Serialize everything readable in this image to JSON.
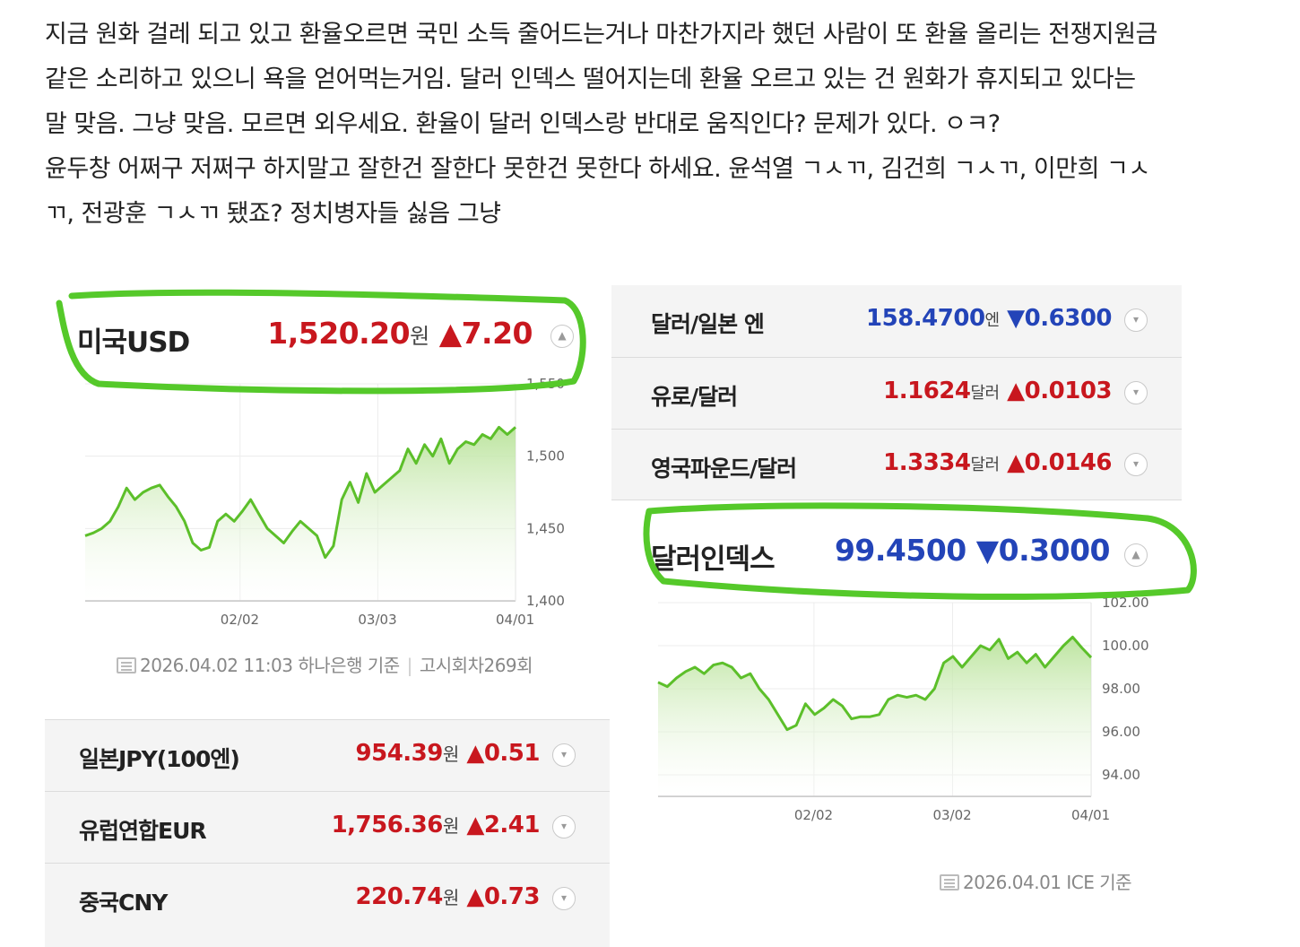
{
  "post": {
    "lines": [
      "지금 원화 걸레 되고 있고 환율오르면 국민 소득 줄어드는거나 마찬가지라 했던 사람이 또 환율 올리는 전쟁지원금",
      "같은 소리하고 있으니 욕을 얻어먹는거임. 달러 인덱스 떨어지는데 환율 오르고 있는 건 원화가 휴지되고 있다는",
      "말 맞음. 그냥 맞음. 모르면 외우세요. 환율이 달러 인덱스랑 반대로 움직인다? 문제가 있다. ㅇㅋ?",
      "윤두창 어쩌구 저쩌구 하지말고 잘한건 잘한다 못한건 못한다 하세요. 윤석열 ㄱㅅㄲ, 김건희 ㄱㅅㄲ, 이만희 ㄱㅅ",
      "ㄲ, 전광훈 ㄱㅅㄲ 됐죠? 정치병자들 싫음 그냥"
    ]
  },
  "usd": {
    "name": "미국USD",
    "value": "1,520.20",
    "unit": "원",
    "change": "▲7.20",
    "toggle": "▲",
    "source_date": "2026.04.02 11:03 하나은행 기준",
    "source_round": "고시회차269회",
    "chart_data": {
      "type": "line",
      "x_ticks": [
        "02/02",
        "03/03",
        "04/01"
      ],
      "y_ticks": [
        "1,550",
        "1,500",
        "1,450",
        "1,400"
      ],
      "ylim": [
        1400,
        1550
      ],
      "values": [
        1445,
        1447,
        1450,
        1455,
        1465,
        1478,
        1470,
        1475,
        1478,
        1480,
        1472,
        1465,
        1455,
        1440,
        1435,
        1437,
        1455,
        1460,
        1455,
        1462,
        1470,
        1460,
        1450,
        1445,
        1440,
        1448,
        1455,
        1450,
        1445,
        1430,
        1438,
        1470,
        1482,
        1468,
        1488,
        1475,
        1480,
        1485,
        1490,
        1505,
        1495,
        1508,
        1500,
        1512,
        1495,
        1505,
        1510,
        1508,
        1515,
        1512,
        1520,
        1515,
        1520
      ]
    }
  },
  "right_rows": [
    {
      "name": "달러/일본 엔",
      "value": "158.4700",
      "unit": "엔",
      "change": "▼0.6300",
      "color": "#2344b8",
      "toggle": "▾"
    },
    {
      "name": "유로/달러",
      "value": "1.1624",
      "unit": "달러",
      "change": "▲0.0103",
      "color": "#c8171e",
      "toggle": "▾"
    },
    {
      "name": "영국파운드/달러",
      "value": "1.3334",
      "unit": "달러",
      "change": "▲0.0146",
      "color": "#c8171e",
      "toggle": "▾"
    }
  ],
  "dxy": {
    "name": "달러인덱스",
    "value": "99.4500",
    "change": "▼0.3000",
    "toggle": "▲",
    "source_date": "2026.04.01 ICE 기준",
    "chart_data": {
      "type": "line",
      "x_ticks": [
        "02/02",
        "03/02",
        "04/01"
      ],
      "y_ticks": [
        "102.00",
        "100.00",
        "98.00",
        "96.00",
        "94.00"
      ],
      "ylim": [
        93.0,
        102.0
      ],
      "values": [
        98.3,
        98.1,
        98.5,
        98.8,
        99.0,
        98.7,
        99.1,
        99.2,
        99.0,
        98.5,
        98.7,
        98.0,
        97.5,
        96.8,
        96.1,
        96.3,
        97.3,
        96.8,
        97.1,
        97.5,
        97.2,
        96.6,
        96.7,
        96.7,
        96.8,
        97.5,
        97.7,
        97.6,
        97.7,
        97.5,
        98.0,
        99.2,
        99.5,
        99.0,
        99.5,
        100.0,
        99.8,
        100.3,
        99.4,
        99.7,
        99.2,
        99.6,
        99.0,
        99.5,
        100.0,
        100.4,
        99.9,
        99.45
      ]
    }
  },
  "left_rows": [
    {
      "name": "일본JPY(100엔)",
      "value": "954.39",
      "unit": "원",
      "change": "▲0.51",
      "toggle": "▾"
    },
    {
      "name": "유럽연합EUR",
      "value": "1,756.36",
      "unit": "원",
      "change": "▲2.41",
      "toggle": "▾"
    },
    {
      "name": "중국CNY",
      "value": "220.74",
      "unit": "원",
      "change": "▲0.73",
      "toggle": "▾"
    }
  ]
}
